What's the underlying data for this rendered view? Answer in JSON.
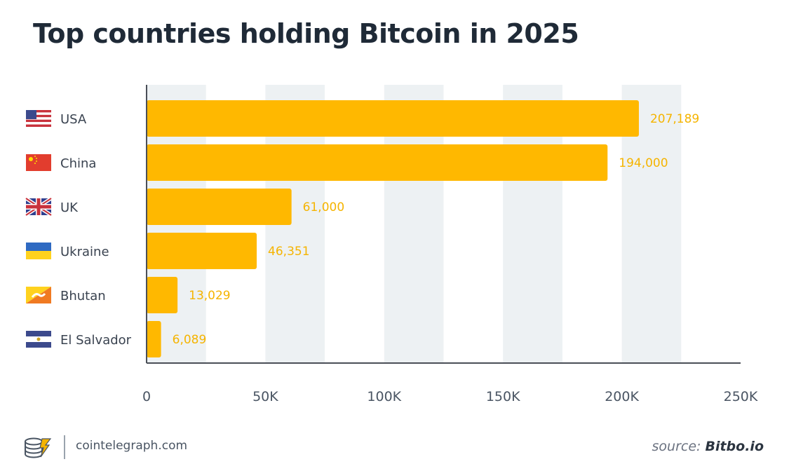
{
  "title": "Top countries holding Bitcoin in 2025",
  "footer": {
    "site": "cointelegraph.com",
    "source_prefix": "source: ",
    "source_name": "Bitbo.io"
  },
  "colors": {
    "bar": "#ffb800",
    "value_label": "#f5b400",
    "band": "#edf1f3",
    "axis": "#4a4f57",
    "text": "#3a4350"
  },
  "chart_data": {
    "type": "bar",
    "orientation": "horizontal",
    "title": "Top countries holding Bitcoin in 2025",
    "categories": [
      "USA",
      "China",
      "UK",
      "Ukraine",
      "Bhutan",
      "El Salvador"
    ],
    "flag_icons": [
      "usa-flag-icon",
      "china-flag-icon",
      "uk-flag-icon",
      "ukraine-flag-icon",
      "bhutan-flag-icon",
      "el-salvador-flag-icon"
    ],
    "values": [
      207189,
      194000,
      61000,
      46351,
      13029,
      6089
    ],
    "value_labels": [
      "207,189",
      "194,000",
      "61,000",
      "46,351",
      "13,029",
      "6,089"
    ],
    "xticks": [
      0,
      50000,
      100000,
      150000,
      200000,
      250000
    ],
    "xtick_labels": [
      "0",
      "50K",
      "100K",
      "150K",
      "200K",
      "250K"
    ],
    "xlim": [
      0,
      250000
    ],
    "grid": "alternating vertical bands",
    "legend": "none"
  }
}
